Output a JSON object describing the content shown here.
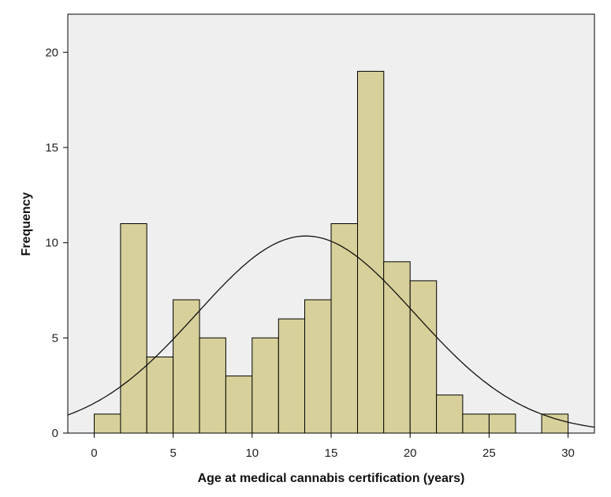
{
  "chart_data": {
    "type": "bar",
    "subtype": "histogram",
    "xlabel": "Age at medical cannabis certification (years)",
    "ylabel": "Frequency",
    "xlim": [
      -1.67,
      31.67
    ],
    "ylim": [
      0,
      22
    ],
    "xticks": [
      0,
      5,
      10,
      15,
      20,
      25,
      30
    ],
    "yticks": [
      0,
      5,
      10,
      15,
      20
    ],
    "bin_width": 1.67,
    "bins": [
      {
        "start": 0.0,
        "end": 1.67,
        "value": 1
      },
      {
        "start": 1.67,
        "end": 3.33,
        "value": 11
      },
      {
        "start": 3.33,
        "end": 5.0,
        "value": 4
      },
      {
        "start": 5.0,
        "end": 6.67,
        "value": 7
      },
      {
        "start": 6.67,
        "end": 8.33,
        "value": 5
      },
      {
        "start": 8.33,
        "end": 10.0,
        "value": 3
      },
      {
        "start": 10.0,
        "end": 11.67,
        "value": 5
      },
      {
        "start": 11.67,
        "end": 13.33,
        "value": 6
      },
      {
        "start": 13.33,
        "end": 15.0,
        "value": 7
      },
      {
        "start": 15.0,
        "end": 16.67,
        "value": 11
      },
      {
        "start": 16.67,
        "end": 18.33,
        "value": 19
      },
      {
        "start": 18.33,
        "end": 20.0,
        "value": 9
      },
      {
        "start": 20.0,
        "end": 21.67,
        "value": 8
      },
      {
        "start": 21.67,
        "end": 23.33,
        "value": 2
      },
      {
        "start": 23.33,
        "end": 25.0,
        "value": 1
      },
      {
        "start": 25.0,
        "end": 26.67,
        "value": 1
      },
      {
        "start": 28.33,
        "end": 30.0,
        "value": 1
      }
    ],
    "normal_curve": {
      "mean": 13.4,
      "sd": 6.9,
      "peak": 10.35
    },
    "colors": {
      "bar_fill": "#d8d09a",
      "plot_background": "#efefef",
      "curve": "#111111"
    }
  }
}
